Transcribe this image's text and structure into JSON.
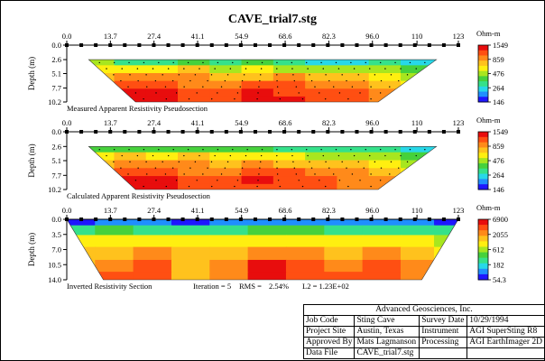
{
  "title": "CAVE_trial7.stg",
  "colors": {
    "scale": [
      "#1e16ff",
      "#1f8fff",
      "#27d8e8",
      "#35e18a",
      "#46d13c",
      "#a8e61f",
      "#ffef10",
      "#ffc21d",
      "#ff8a1a",
      "#ff4f12",
      "#e80d0d"
    ]
  },
  "chart_data": [
    {
      "type": "heatmap",
      "title": "",
      "caption": "Measured Apparent Resistivity Pseudosection",
      "ylabel": "Depth (m)",
      "x_ticks": [
        "0.0",
        "13.7",
        "27.4",
        "41.1",
        "54.9",
        "68.6",
        "82.3",
        "96.0",
        "110",
        "123"
      ],
      "x_tick_values": [
        0,
        13.7,
        27.4,
        41.1,
        54.9,
        68.6,
        82.3,
        96.0,
        110,
        123
      ],
      "xlim": [
        0,
        123
      ],
      "y_ticks": [
        "0.0",
        "2.6",
        "5.1",
        "7.7",
        "10.2"
      ],
      "y_tick_values": [
        0,
        2.6,
        5.1,
        7.7,
        10.2
      ],
      "ylim": [
        0,
        10.2
      ],
      "unit": "Ohm-m",
      "colorbar_labels": [
        "1549",
        "859",
        "476",
        "264",
        "146"
      ],
      "data_top": 2.6,
      "data_bottom": 10.2,
      "top_left_x": 6.9,
      "top_right_x": 116.1,
      "bottom_left_x": 21.6,
      "bottom_right_x": 97.8,
      "x_grid": [
        10,
        20,
        30,
        40,
        50,
        60,
        70,
        80,
        90,
        100,
        110
      ],
      "y_grid": [
        3.0,
        4.4,
        5.8,
        7.2,
        8.6,
        10.0
      ],
      "values": [
        [
          5,
          3,
          3,
          4,
          3,
          4,
          3,
          2,
          2,
          3,
          2
        ],
        [
          6,
          6,
          6,
          7,
          5,
          6,
          5,
          5,
          5,
          5,
          4
        ],
        [
          7,
          8,
          8,
          8,
          7,
          7,
          8,
          7,
          7,
          6,
          5
        ],
        [
          7,
          9,
          9,
          8,
          8,
          9,
          9,
          8,
          8,
          7,
          6
        ],
        [
          7,
          10,
          10,
          9,
          9,
          10,
          9,
          9,
          9,
          8,
          7
        ],
        [
          8,
          10,
          10,
          9,
          9,
          10,
          10,
          9,
          9,
          8,
          7
        ]
      ]
    },
    {
      "type": "heatmap",
      "title": "",
      "caption": "Calculated Apparent Resistivity Pseudosection",
      "ylabel": "Depth (m)",
      "x_ticks": [
        "0.0",
        "13.7",
        "27.4",
        "41.1",
        "54.9",
        "68.6",
        "82.3",
        "96.0",
        "110",
        "123"
      ],
      "x_tick_values": [
        0,
        13.7,
        27.4,
        41.1,
        54.9,
        68.6,
        82.3,
        96.0,
        110,
        123
      ],
      "xlim": [
        0,
        123
      ],
      "y_ticks": [
        "0.0",
        "2.6",
        "5.1",
        "7.7",
        "10.2"
      ],
      "y_tick_values": [
        0,
        2.6,
        5.1,
        7.7,
        10.2
      ],
      "ylim": [
        0,
        10.2
      ],
      "unit": "Ohm-m",
      "colorbar_labels": [
        "1549",
        "859",
        "476",
        "264",
        "146"
      ],
      "data_top": 2.6,
      "data_bottom": 10.2,
      "top_left_x": 6.9,
      "top_right_x": 116.1,
      "bottom_left_x": 21.6,
      "bottom_right_x": 97.8,
      "x_grid": [
        10,
        20,
        30,
        40,
        50,
        60,
        70,
        80,
        90,
        100,
        110
      ],
      "y_grid": [
        3.0,
        4.4,
        5.8,
        7.2,
        8.6,
        10.0
      ],
      "values": [
        [
          4,
          4,
          4,
          4,
          4,
          4,
          3,
          3,
          3,
          3,
          2
        ],
        [
          6,
          7,
          6,
          7,
          6,
          6,
          6,
          5,
          5,
          5,
          4
        ],
        [
          7,
          8,
          8,
          8,
          7,
          8,
          7,
          7,
          7,
          6,
          5
        ],
        [
          7,
          9,
          9,
          8,
          8,
          9,
          9,
          8,
          8,
          7,
          6
        ],
        [
          7,
          10,
          10,
          9,
          9,
          10,
          9,
          9,
          8,
          8,
          7
        ],
        [
          8,
          10,
          10,
          9,
          9,
          9,
          9,
          9,
          8,
          8,
          7
        ]
      ]
    },
    {
      "type": "heatmap",
      "title": "",
      "caption": "Inverted Resistivity Section",
      "annotations": [
        "Iteration = 5",
        "RMS =",
        "2.54%",
        "L2 =  1.23E+02"
      ],
      "ylabel": "Depth (m)",
      "x_ticks": [
        "0.0",
        "13.7",
        "27.4",
        "41.1",
        "54.9",
        "68.6",
        "82.3",
        "96.0",
        "110",
        "123"
      ],
      "x_tick_values": [
        0,
        13.7,
        27.4,
        41.1,
        54.9,
        68.6,
        82.3,
        96.0,
        110,
        123
      ],
      "xlim": [
        0,
        123
      ],
      "y_ticks": [
        "0.0",
        "3.5",
        "7.0",
        "10.5",
        "14.0"
      ],
      "y_tick_values": [
        0,
        3.5,
        7.0,
        10.5,
        14.0
      ],
      "ylim": [
        0,
        14.0
      ],
      "unit": "Ohm-m",
      "colorbar_labels": [
        "6900",
        "2055",
        "612",
        "182",
        "54.3"
      ],
      "data_top": 0,
      "data_bottom": 14.0,
      "top_left_x": 0,
      "top_right_x": 123,
      "bottom_left_x": 11.5,
      "bottom_right_x": 111.5,
      "x_grid": [
        3,
        15,
        27,
        39,
        51,
        63,
        75,
        87,
        99,
        111,
        120
      ],
      "y_grid": [
        0.5,
        2.5,
        5.0,
        8.0,
        11.0,
        13.5
      ],
      "values": [
        [
          0,
          1,
          1,
          0,
          1,
          1,
          1,
          1,
          1,
          1,
          0
        ],
        [
          3,
          4,
          3,
          3,
          3,
          4,
          4,
          3,
          3,
          3,
          3
        ],
        [
          6,
          6,
          6,
          6,
          6,
          6,
          6,
          6,
          6,
          6,
          5
        ],
        [
          7,
          7,
          8,
          7,
          7,
          8,
          8,
          7,
          8,
          7,
          6
        ],
        [
          7,
          8,
          9,
          7,
          8,
          10,
          9,
          8,
          9,
          8,
          7
        ],
        [
          8,
          9,
          9,
          7,
          8,
          10,
          9,
          9,
          9,
          8,
          7
        ]
      ]
    }
  ],
  "info_table": {
    "company": "Advanced Geosciences, Inc.",
    "rows": [
      [
        "Job Code",
        "Sting Cave",
        "Survey Date",
        "10/29/1994"
      ],
      [
        "Project Site",
        "Austin, Texas",
        "Instrument",
        "AGI SuperSting R8"
      ],
      [
        "Approved By",
        "Mats Lagmanson",
        "Processing",
        "AGI EarthImager 2D"
      ],
      [
        "Data File",
        "CAVE_trial7.stg",
        "",
        ""
      ]
    ]
  }
}
